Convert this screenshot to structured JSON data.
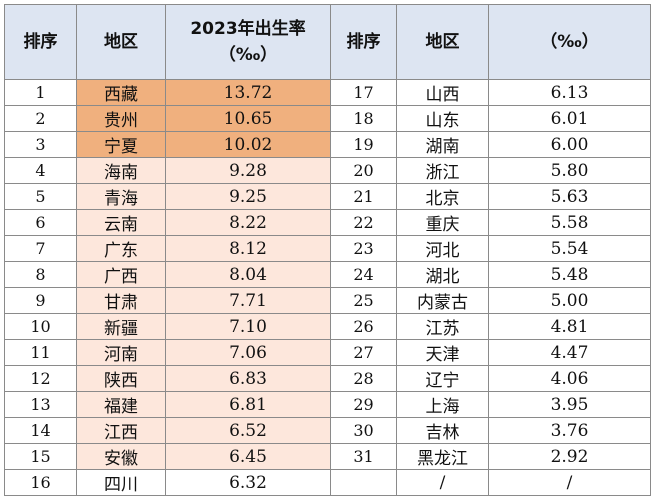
{
  "headers": {
    "rank": "排序",
    "region": "地区",
    "rate": "2023年出生率",
    "unit": "（‰）",
    "rank2": "排序",
    "region2": "地区",
    "rate2": "（‰）"
  },
  "left_rows": [
    {
      "rank": "1",
      "region": "西藏",
      "value": "13.72"
    },
    {
      "rank": "2",
      "region": "贵州",
      "value": "10.65"
    },
    {
      "rank": "3",
      "region": "宁夏",
      "value": "10.02"
    },
    {
      "rank": "4",
      "region": "海南",
      "value": "9.28"
    },
    {
      "rank": "5",
      "region": "青海",
      "value": "9.25"
    },
    {
      "rank": "6",
      "region": "云南",
      "value": "8.22"
    },
    {
      "rank": "7",
      "region": "广东",
      "value": "8.12"
    },
    {
      "rank": "8",
      "region": "广西",
      "value": "8.04"
    },
    {
      "rank": "9",
      "region": "甘肃",
      "value": "7.71"
    },
    {
      "rank": "10",
      "region": "新疆",
      "value": "7.10"
    },
    {
      "rank": "11",
      "region": "河南",
      "value": "7.06"
    },
    {
      "rank": "12",
      "region": "陕西",
      "value": "6.83"
    },
    {
      "rank": "13",
      "region": "福建",
      "value": "6.81"
    },
    {
      "rank": "14",
      "region": "江西",
      "value": "6.52"
    },
    {
      "rank": "15",
      "region": "安徽",
      "value": "6.45"
    },
    {
      "rank": "16",
      "region": "四川",
      "value": "6.32"
    }
  ],
  "right_rows": [
    {
      "rank": "17",
      "region": "山西",
      "value": "6.13"
    },
    {
      "rank": "18",
      "region": "山东",
      "value": "6.01"
    },
    {
      "rank": "19",
      "region": "湖南",
      "value": "6.00"
    },
    {
      "rank": "20",
      "region": "浙江",
      "value": "5.80"
    },
    {
      "rank": "21",
      "region": "北京",
      "value": "5.63"
    },
    {
      "rank": "22",
      "region": "重庆",
      "value": "5.58"
    },
    {
      "rank": "23",
      "region": "河北",
      "value": "5.54"
    },
    {
      "rank": "24",
      "region": "湖北",
      "value": "5.48"
    },
    {
      "rank": "25",
      "region": "内蒙古",
      "value": "5.00"
    },
    {
      "rank": "26",
      "region": "江苏",
      "value": "4.81"
    },
    {
      "rank": "27",
      "region": "天津",
      "value": "4.47"
    },
    {
      "rank": "28",
      "region": "辽宁",
      "value": "4.06"
    },
    {
      "rank": "29",
      "region": "上海",
      "value": "3.95"
    },
    {
      "rank": "30",
      "region": "吉林",
      "value": "3.76"
    },
    {
      "rank": "31",
      "region": "黑龙江",
      "value": "2.92"
    },
    {
      "rank": "",
      "region": "/",
      "value": "/"
    }
  ],
  "colors": {
    "header_bg": "#dde5f2",
    "highlight_strong": "#f0b07e",
    "highlight_light": "#fde7dc"
  }
}
